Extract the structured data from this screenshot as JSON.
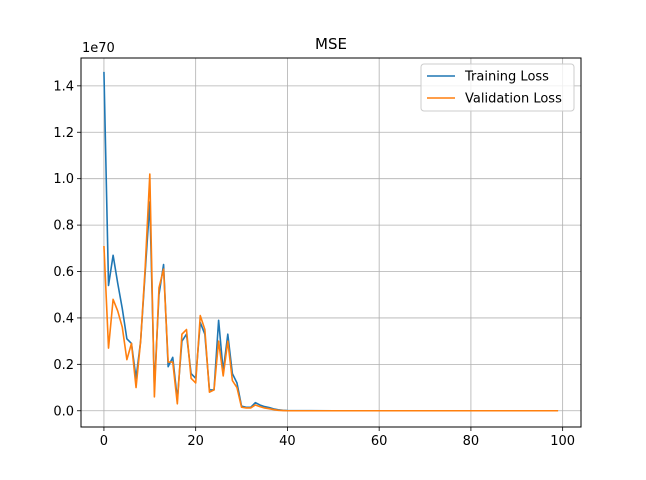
{
  "chart_data": {
    "type": "line",
    "title": "MSE",
    "xlabel": "",
    "ylabel": "",
    "y_scale_label": "1e70",
    "xlim": [
      -5,
      104
    ],
    "ylim": [
      -0.07,
      1.52
    ],
    "x_ticks": [
      0,
      20,
      40,
      60,
      80,
      100
    ],
    "y_ticks": [
      0.0,
      0.2,
      0.4,
      0.6,
      0.8,
      1.0,
      1.2,
      1.4
    ],
    "y_tick_labels": [
      "0.0",
      "0.2",
      "0.4",
      "0.6",
      "0.8",
      "1.0",
      "1.2",
      "1.4"
    ],
    "grid": true,
    "legend_position": "top-right",
    "series": [
      {
        "name": "Training Loss",
        "color": "#1f77b4",
        "points": [
          [
            0,
            1.46
          ],
          [
            1,
            0.54
          ],
          [
            2,
            0.67
          ],
          [
            3,
            0.55
          ],
          [
            4,
            0.44
          ],
          [
            5,
            0.31
          ],
          [
            6,
            0.29
          ],
          [
            7,
            0.14
          ],
          [
            8,
            0.3
          ],
          [
            9,
            0.6
          ],
          [
            10,
            0.9
          ],
          [
            11,
            0.1
          ],
          [
            12,
            0.5
          ],
          [
            13,
            0.63
          ],
          [
            14,
            0.19
          ],
          [
            15,
            0.23
          ],
          [
            16,
            0.05
          ],
          [
            17,
            0.3
          ],
          [
            18,
            0.33
          ],
          [
            19,
            0.16
          ],
          [
            20,
            0.14
          ],
          [
            21,
            0.38
          ],
          [
            22,
            0.33
          ],
          [
            23,
            0.09
          ],
          [
            24,
            0.09
          ],
          [
            25,
            0.39
          ],
          [
            26,
            0.17
          ],
          [
            27,
            0.33
          ],
          [
            28,
            0.16
          ],
          [
            29,
            0.12
          ],
          [
            30,
            0.02
          ],
          [
            31,
            0.015
          ],
          [
            32,
            0.015
          ],
          [
            33,
            0.035
          ],
          [
            34,
            0.025
          ],
          [
            35,
            0.018
          ],
          [
            36,
            0.014
          ],
          [
            37,
            0.008
          ],
          [
            38,
            0.004
          ],
          [
            39,
            0.002
          ],
          [
            40,
            0.001
          ],
          [
            50,
            0
          ],
          [
            60,
            0
          ],
          [
            70,
            0
          ],
          [
            80,
            0
          ],
          [
            90,
            0
          ],
          [
            99,
            0
          ]
        ]
      },
      {
        "name": "Validation Loss",
        "color": "#ff7f0e",
        "points": [
          [
            0,
            0.71
          ],
          [
            1,
            0.27
          ],
          [
            2,
            0.48
          ],
          [
            3,
            0.43
          ],
          [
            4,
            0.36
          ],
          [
            5,
            0.22
          ],
          [
            6,
            0.29
          ],
          [
            7,
            0.1
          ],
          [
            8,
            0.3
          ],
          [
            9,
            0.62
          ],
          [
            10,
            1.02
          ],
          [
            11,
            0.06
          ],
          [
            12,
            0.53
          ],
          [
            13,
            0.61
          ],
          [
            14,
            0.21
          ],
          [
            15,
            0.21
          ],
          [
            16,
            0.03
          ],
          [
            17,
            0.33
          ],
          [
            18,
            0.35
          ],
          [
            19,
            0.14
          ],
          [
            20,
            0.12
          ],
          [
            21,
            0.41
          ],
          [
            22,
            0.35
          ],
          [
            23,
            0.08
          ],
          [
            24,
            0.09
          ],
          [
            25,
            0.3
          ],
          [
            26,
            0.15
          ],
          [
            27,
            0.3
          ],
          [
            28,
            0.13
          ],
          [
            29,
            0.1
          ],
          [
            30,
            0.015
          ],
          [
            31,
            0.012
          ],
          [
            32,
            0.012
          ],
          [
            33,
            0.025
          ],
          [
            34,
            0.018
          ],
          [
            35,
            0.012
          ],
          [
            36,
            0.009
          ],
          [
            37,
            0.005
          ],
          [
            38,
            0.002
          ],
          [
            39,
            0.001
          ],
          [
            40,
            0.0
          ],
          [
            50,
            0
          ],
          [
            60,
            0
          ],
          [
            70,
            0
          ],
          [
            80,
            0
          ],
          [
            90,
            0
          ],
          [
            99,
            0
          ]
        ]
      }
    ]
  }
}
